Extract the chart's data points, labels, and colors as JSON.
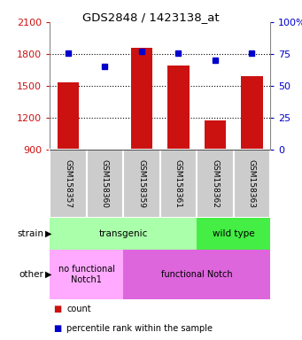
{
  "title": "GDS2848 / 1423138_at",
  "samples": [
    "GSM158357",
    "GSM158360",
    "GSM158359",
    "GSM158361",
    "GSM158362",
    "GSM158363"
  ],
  "counts": [
    1535,
    870,
    1855,
    1690,
    1175,
    1590
  ],
  "percentiles": [
    76,
    65,
    77,
    76,
    70,
    76
  ],
  "ylim": [
    900,
    2100
  ],
  "yticks": [
    900,
    1200,
    1500,
    1800,
    2100
  ],
  "y2lim": [
    0,
    100
  ],
  "y2ticks": [
    0,
    25,
    50,
    75,
    100
  ],
  "y2labels": [
    "0",
    "25",
    "50",
    "75",
    "100%"
  ],
  "bar_color": "#cc1111",
  "dot_color": "#0000cc",
  "grid_lines": [
    1200,
    1500,
    1800
  ],
  "strain_labels": [
    {
      "text": "transgenic",
      "start": 0,
      "end": 3,
      "color": "#aaffaa"
    },
    {
      "text": "wild type",
      "start": 4,
      "end": 5,
      "color": "#44ee44"
    }
  ],
  "other_labels": [
    {
      "text": "no functional\nNotch1",
      "start": 0,
      "end": 1,
      "color": "#ffaaff"
    },
    {
      "text": "functional Notch",
      "start": 2,
      "end": 5,
      "color": "#dd66dd"
    }
  ],
  "legend_count_label": "count",
  "legend_pct_label": "percentile rank within the sample",
  "left_label_strain": "strain",
  "left_label_other": "other",
  "axis_color_left": "#cc1111",
  "axis_color_right": "#0000cc",
  "sample_box_color": "#cccccc",
  "n_samples": 6
}
